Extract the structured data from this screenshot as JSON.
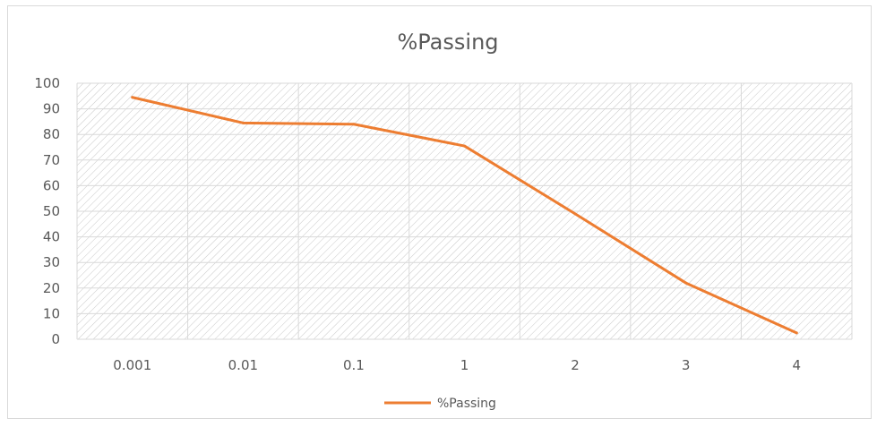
{
  "chart_data": {
    "type": "line",
    "title": "%Passing",
    "categories": [
      "0.001",
      "0.01",
      "0.1",
      "1",
      "2",
      "3",
      "4"
    ],
    "series": [
      {
        "name": "%Passing",
        "values": [
          94.5,
          84.5,
          84,
          75.5,
          49,
          22,
          2.5
        ]
      }
    ],
    "ylim": [
      0,
      100
    ],
    "yticks": [
      "0",
      "10",
      "20",
      "30",
      "40",
      "50",
      "60",
      "70",
      "80",
      "90",
      "100"
    ],
    "xlabel": "",
    "ylabel": "",
    "grid": true,
    "legend_position": "bottom",
    "colors": {
      "series": "#ED7D31",
      "grid": "#d9d9d9",
      "text": "#595959",
      "hatch": "#c8c8c8"
    }
  }
}
